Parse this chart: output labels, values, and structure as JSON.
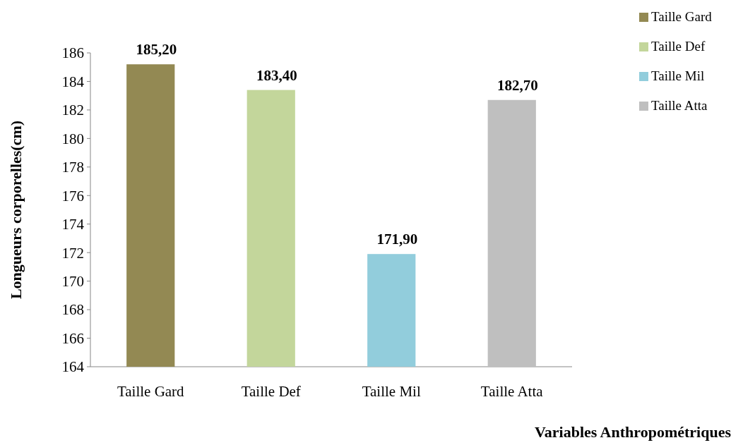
{
  "chart_data": {
    "type": "bar",
    "xlabel": "Variables Anthropométriques",
    "ylabel": "Longueurs corporelles(cm)",
    "categories": [
      "Taille Gard",
      "Taille Def",
      "Taille Mil",
      "Taille Atta"
    ],
    "series": [
      {
        "name": "Taille Gard",
        "color": "#938953",
        "values": [
          185.2,
          null,
          null,
          null
        ],
        "value_labels": [
          "185,20",
          null,
          null,
          null
        ]
      },
      {
        "name": "Taille Def",
        "color": "#c3d69b",
        "values": [
          null,
          183.4,
          null,
          null
        ],
        "value_labels": [
          null,
          "183,40",
          null,
          null
        ]
      },
      {
        "name": "Taille Mil",
        "color": "#92cddc",
        "values": [
          null,
          null,
          171.9,
          null
        ],
        "value_labels": [
          null,
          null,
          "171,90",
          null
        ]
      },
      {
        "name": "Taille Atta",
        "color": "#bfbfbf",
        "values": [
          null,
          null,
          null,
          182.7
        ],
        "value_labels": [
          null,
          null,
          null,
          "182,70"
        ]
      }
    ],
    "ylim": [
      164,
      186
    ],
    "yticks": [
      164,
      166,
      168,
      170,
      172,
      174,
      176,
      178,
      180,
      182,
      184,
      186
    ],
    "grid": false,
    "legend": "top right"
  }
}
